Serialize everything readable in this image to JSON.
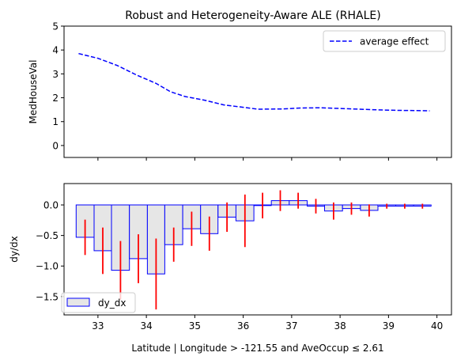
{
  "chart_data": [
    {
      "type": "line",
      "title": "Robust and Heterogeneity-Aware ALE (RHALE)",
      "ylabel": "MedHouseVal",
      "xlabel": "",
      "xlim": [
        32.3,
        40.3
      ],
      "ylim": [
        -0.5,
        5
      ],
      "yticks": [
        0,
        1,
        2,
        3,
        4,
        5
      ],
      "xticks": [
        33,
        34,
        35,
        36,
        37,
        38,
        39,
        40
      ],
      "show_xtick_labels": false,
      "grid": false,
      "legend_position": "upper right",
      "series": [
        {
          "name": "average effect",
          "color": "#0000ff",
          "linestyle": "dashed",
          "x": [
            32.6,
            33.0,
            33.4,
            33.8,
            34.2,
            34.5,
            34.8,
            35.2,
            35.6,
            36.0,
            36.3,
            36.8,
            37.2,
            37.6,
            38.0,
            38.4,
            38.8,
            39.2,
            39.6,
            39.85
          ],
          "y": [
            3.85,
            3.65,
            3.35,
            2.95,
            2.6,
            2.25,
            2.05,
            1.9,
            1.7,
            1.6,
            1.52,
            1.53,
            1.57,
            1.58,
            1.55,
            1.52,
            1.49,
            1.47,
            1.46,
            1.45
          ]
        }
      ]
    },
    {
      "type": "bar",
      "title": "",
      "ylabel": "dy/dx",
      "xlabel": "Latitude | Longitude > -121.55 and AveOccup ≤ 2.61",
      "xlim": [
        32.3,
        40.3
      ],
      "ylim": [
        -1.8,
        0.35
      ],
      "yticks": [
        0.0,
        -0.5,
        -1.0,
        -1.5
      ],
      "ytick_labels": [
        "0.0",
        "−0.5",
        "−1.0",
        "−1.5"
      ],
      "xticks": [
        33,
        34,
        35,
        36,
        37,
        38,
        39,
        40
      ],
      "grid": false,
      "legend_position": "lower left",
      "bar_fill": "#e6e6e6",
      "bar_edge": "#0000ff",
      "error_color": "#ff0000",
      "series": [
        {
          "name": "dy_dx",
          "bins": [
            {
              "x0": 32.55,
              "x1": 32.92,
              "value": -0.53,
              "err": 0.29
            },
            {
              "x0": 32.92,
              "x1": 33.28,
              "value": -0.75,
              "err": 0.38
            },
            {
              "x0": 33.28,
              "x1": 33.65,
              "value": -1.07,
              "err": 0.48
            },
            {
              "x0": 33.65,
              "x1": 34.02,
              "value": -0.88,
              "err": 0.4
            },
            {
              "x0": 34.02,
              "x1": 34.38,
              "value": -1.13,
              "err": 0.58
            },
            {
              "x0": 34.38,
              "x1": 34.75,
              "value": -0.65,
              "err": 0.28
            },
            {
              "x0": 34.75,
              "x1": 35.12,
              "value": -0.39,
              "err": 0.28
            },
            {
              "x0": 35.12,
              "x1": 35.48,
              "value": -0.47,
              "err": 0.28
            },
            {
              "x0": 35.48,
              "x1": 35.85,
              "value": -0.2,
              "err": 0.24
            },
            {
              "x0": 35.85,
              "x1": 36.22,
              "value": -0.26,
              "err": 0.43
            },
            {
              "x0": 36.22,
              "x1": 36.58,
              "value": -0.01,
              "err": 0.21
            },
            {
              "x0": 36.58,
              "x1": 36.95,
              "value": 0.07,
              "err": 0.17
            },
            {
              "x0": 36.95,
              "x1": 37.32,
              "value": 0.07,
              "err": 0.13
            },
            {
              "x0": 37.32,
              "x1": 37.68,
              "value": -0.02,
              "err": 0.12
            },
            {
              "x0": 37.68,
              "x1": 38.05,
              "value": -0.1,
              "err": 0.14
            },
            {
              "x0": 38.05,
              "x1": 38.42,
              "value": -0.06,
              "err": 0.1
            },
            {
              "x0": 38.42,
              "x1": 38.78,
              "value": -0.09,
              "err": 0.1
            },
            {
              "x0": 38.78,
              "x1": 39.15,
              "value": -0.02,
              "err": 0.04
            },
            {
              "x0": 39.15,
              "x1": 39.52,
              "value": -0.02,
              "err": 0.04
            },
            {
              "x0": 39.52,
              "x1": 39.88,
              "value": -0.02,
              "err": 0.04
            }
          ]
        }
      ]
    }
  ]
}
